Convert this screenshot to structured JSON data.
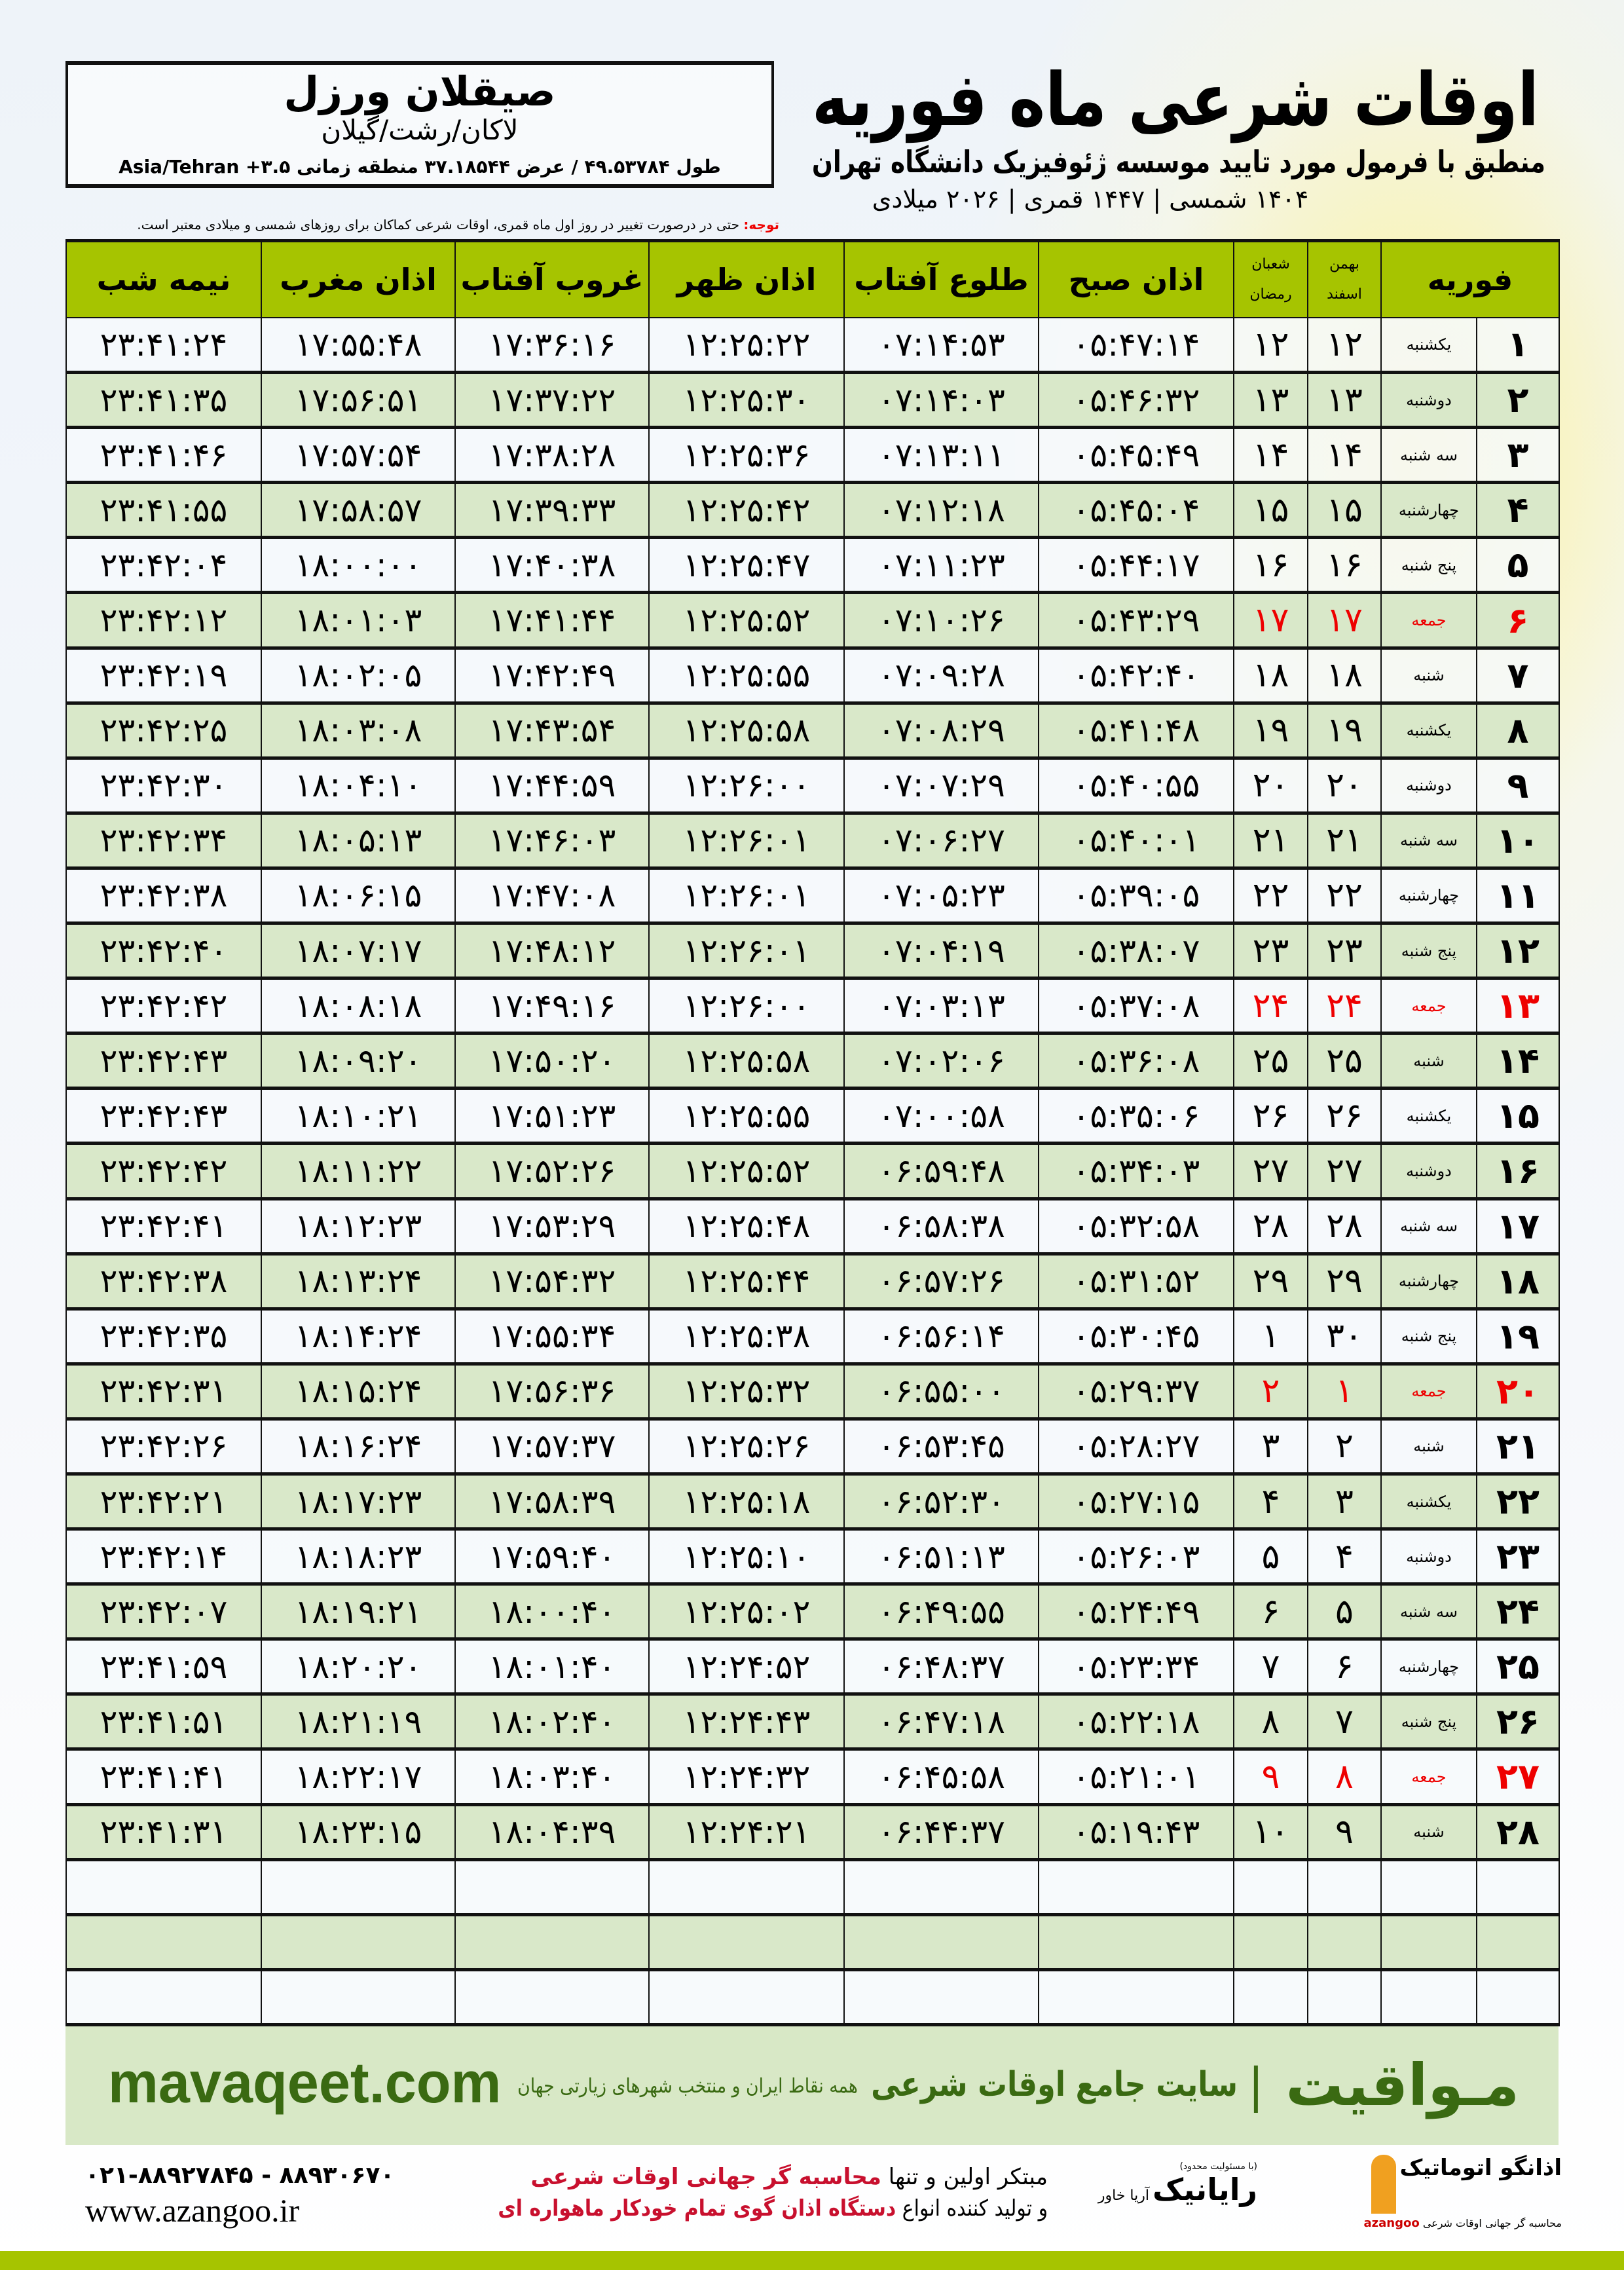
{
  "location": {
    "name": "صیقلان ورزل",
    "path": "لاکان/رشت/گیلان",
    "coords": "طول ۴۹.۵۳۷۸۴ / عرض ۳۷.۱۸۵۴۴ منطقه زمانی ۳.۵+ Asia/Tehran"
  },
  "header": {
    "title": "اوقات شرعی ماه فوریه",
    "subtitle": "منطبق با فرمول مورد تایید موسسه ژئوفیزیک دانشگاه تهران",
    "dates": "۱۴۰۴ شمسی | ۱۴۴۷ قمری | ۲۰۲۶ میلادی"
  },
  "note": {
    "label": "توجه:",
    "text": " حتی در درصورت تغییر در روز اول ماه قمری، اوقات شرعی کماکان برای روزهای شمسی و میلادی معتبر است."
  },
  "table": {
    "headers": {
      "month": "فوریه",
      "solar_top": "بهمن",
      "solar_bottom": "اسفند",
      "lunar_top": "شعبان",
      "lunar_bottom": "رمضان",
      "fajr": "اذان صبح",
      "sunrise": "طلوع آفتاب",
      "dhuhr": "اذان ظهر",
      "sunset": "غروب آفتاب",
      "maghrib": "اذان مغرب",
      "midnight": "نیمه شب"
    },
    "friday_color": "#e00000",
    "header_color": "#a6c400",
    "rows": [
      [
        "۱",
        "یکشنبه",
        "۱۲",
        "۱۲",
        "۰۵:۴۷:۱۴",
        "۰۷:۱۴:۵۳",
        "۱۲:۲۵:۲۲",
        "۱۷:۳۶:۱۶",
        "۱۷:۵۵:۴۸",
        "۲۳:۴۱:۲۴"
      ],
      [
        "۲",
        "دوشنبه",
        "۱۳",
        "۱۳",
        "۰۵:۴۶:۳۲",
        "۰۷:۱۴:۰۳",
        "۱۲:۲۵:۳۰",
        "۱۷:۳۷:۲۲",
        "۱۷:۵۶:۵۱",
        "۲۳:۴۱:۳۵"
      ],
      [
        "۳",
        "سه شنبه",
        "۱۴",
        "۱۴",
        "۰۵:۴۵:۴۹",
        "۰۷:۱۳:۱۱",
        "۱۲:۲۵:۳۶",
        "۱۷:۳۸:۲۸",
        "۱۷:۵۷:۵۴",
        "۲۳:۴۱:۴۶"
      ],
      [
        "۴",
        "چهارشنبه",
        "۱۵",
        "۱۵",
        "۰۵:۴۵:۰۴",
        "۰۷:۱۲:۱۸",
        "۱۲:۲۵:۴۲",
        "۱۷:۳۹:۳۳",
        "۱۷:۵۸:۵۷",
        "۲۳:۴۱:۵۵"
      ],
      [
        "۵",
        "پنج شنبه",
        "۱۶",
        "۱۶",
        "۰۵:۴۴:۱۷",
        "۰۷:۱۱:۲۳",
        "۱۲:۲۵:۴۷",
        "۱۷:۴۰:۳۸",
        "۱۸:۰۰:۰۰",
        "۲۳:۴۲:۰۴"
      ],
      [
        "۶",
        "جمعه",
        "۱۷",
        "۱۷",
        "۰۵:۴۳:۲۹",
        "۰۷:۱۰:۲۶",
        "۱۲:۲۵:۵۲",
        "۱۷:۴۱:۴۴",
        "۱۸:۰۱:۰۳",
        "۲۳:۴۲:۱۲"
      ],
      [
        "۷",
        "شنبه",
        "۱۸",
        "۱۸",
        "۰۵:۴۲:۴۰",
        "۰۷:۰۹:۲۸",
        "۱۲:۲۵:۵۵",
        "۱۷:۴۲:۴۹",
        "۱۸:۰۲:۰۵",
        "۲۳:۴۲:۱۹"
      ],
      [
        "۸",
        "یکشنبه",
        "۱۹",
        "۱۹",
        "۰۵:۴۱:۴۸",
        "۰۷:۰۸:۲۹",
        "۱۲:۲۵:۵۸",
        "۱۷:۴۳:۵۴",
        "۱۸:۰۳:۰۸",
        "۲۳:۴۲:۲۵"
      ],
      [
        "۹",
        "دوشنبه",
        "۲۰",
        "۲۰",
        "۰۵:۴۰:۵۵",
        "۰۷:۰۷:۲۹",
        "۱۲:۲۶:۰۰",
        "۱۷:۴۴:۵۹",
        "۱۸:۰۴:۱۰",
        "۲۳:۴۲:۳۰"
      ],
      [
        "۱۰",
        "سه شنبه",
        "۲۱",
        "۲۱",
        "۰۵:۴۰:۰۱",
        "۰۷:۰۶:۲۷",
        "۱۲:۲۶:۰۱",
        "۱۷:۴۶:۰۳",
        "۱۸:۰۵:۱۳",
        "۲۳:۴۲:۳۴"
      ],
      [
        "۱۱",
        "چهارشنبه",
        "۲۲",
        "۲۲",
        "۰۵:۳۹:۰۵",
        "۰۷:۰۵:۲۳",
        "۱۲:۲۶:۰۱",
        "۱۷:۴۷:۰۸",
        "۱۸:۰۶:۱۵",
        "۲۳:۴۲:۳۸"
      ],
      [
        "۱۲",
        "پنج شنبه",
        "۲۳",
        "۲۳",
        "۰۵:۳۸:۰۷",
        "۰۷:۰۴:۱۹",
        "۱۲:۲۶:۰۱",
        "۱۷:۴۸:۱۲",
        "۱۸:۰۷:۱۷",
        "۲۳:۴۲:۴۰"
      ],
      [
        "۱۳",
        "جمعه",
        "۲۴",
        "۲۴",
        "۰۵:۳۷:۰۸",
        "۰۷:۰۳:۱۳",
        "۱۲:۲۶:۰۰",
        "۱۷:۴۹:۱۶",
        "۱۸:۰۸:۱۸",
        "۲۳:۴۲:۴۲"
      ],
      [
        "۱۴",
        "شنبه",
        "۲۵",
        "۲۵",
        "۰۵:۳۶:۰۸",
        "۰۷:۰۲:۰۶",
        "۱۲:۲۵:۵۸",
        "۱۷:۵۰:۲۰",
        "۱۸:۰۹:۲۰",
        "۲۳:۴۲:۴۳"
      ],
      [
        "۱۵",
        "یکشنبه",
        "۲۶",
        "۲۶",
        "۰۵:۳۵:۰۶",
        "۰۷:۰۰:۵۸",
        "۱۲:۲۵:۵۵",
        "۱۷:۵۱:۲۳",
        "۱۸:۱۰:۲۱",
        "۲۳:۴۲:۴۳"
      ],
      [
        "۱۶",
        "دوشنبه",
        "۲۷",
        "۲۷",
        "۰۵:۳۴:۰۳",
        "۰۶:۵۹:۴۸",
        "۱۲:۲۵:۵۲",
        "۱۷:۵۲:۲۶",
        "۱۸:۱۱:۲۲",
        "۲۳:۴۲:۴۲"
      ],
      [
        "۱۷",
        "سه شنبه",
        "۲۸",
        "۲۸",
        "۰۵:۳۲:۵۸",
        "۰۶:۵۸:۳۸",
        "۱۲:۲۵:۴۸",
        "۱۷:۵۳:۲۹",
        "۱۸:۱۲:۲۳",
        "۲۳:۴۲:۴۱"
      ],
      [
        "۱۸",
        "چهارشنبه",
        "۲۹",
        "۲۹",
        "۰۵:۳۱:۵۲",
        "۰۶:۵۷:۲۶",
        "۱۲:۲۵:۴۴",
        "۱۷:۵۴:۳۲",
        "۱۸:۱۳:۲۴",
        "۲۳:۴۲:۳۸"
      ],
      [
        "۱۹",
        "پنج شنبه",
        "۳۰",
        "۱",
        "۰۵:۳۰:۴۵",
        "۰۶:۵۶:۱۴",
        "۱۲:۲۵:۳۸",
        "۱۷:۵۵:۳۴",
        "۱۸:۱۴:۲۴",
        "۲۳:۴۲:۳۵"
      ],
      [
        "۲۰",
        "جمعه",
        "۱",
        "۲",
        "۰۵:۲۹:۳۷",
        "۰۶:۵۵:۰۰",
        "۱۲:۲۵:۳۲",
        "۱۷:۵۶:۳۶",
        "۱۸:۱۵:۲۴",
        "۲۳:۴۲:۳۱"
      ],
      [
        "۲۱",
        "شنبه",
        "۲",
        "۳",
        "۰۵:۲۸:۲۷",
        "۰۶:۵۳:۴۵",
        "۱۲:۲۵:۲۶",
        "۱۷:۵۷:۳۷",
        "۱۸:۱۶:۲۴",
        "۲۳:۴۲:۲۶"
      ],
      [
        "۲۲",
        "یکشنبه",
        "۳",
        "۴",
        "۰۵:۲۷:۱۵",
        "۰۶:۵۲:۳۰",
        "۱۲:۲۵:۱۸",
        "۱۷:۵۸:۳۹",
        "۱۸:۱۷:۲۳",
        "۲۳:۴۲:۲۱"
      ],
      [
        "۲۳",
        "دوشنبه",
        "۴",
        "۵",
        "۰۵:۲۶:۰۳",
        "۰۶:۵۱:۱۳",
        "۱۲:۲۵:۱۰",
        "۱۷:۵۹:۴۰",
        "۱۸:۱۸:۲۳",
        "۲۳:۴۲:۱۴"
      ],
      [
        "۲۴",
        "سه شنبه",
        "۵",
        "۶",
        "۰۵:۲۴:۴۹",
        "۰۶:۴۹:۵۵",
        "۱۲:۲۵:۰۲",
        "۱۸:۰۰:۴۰",
        "۱۸:۱۹:۲۱",
        "۲۳:۴۲:۰۷"
      ],
      [
        "۲۵",
        "چهارشنبه",
        "۶",
        "۷",
        "۰۵:۲۳:۳۴",
        "۰۶:۴۸:۳۷",
        "۱۲:۲۴:۵۲",
        "۱۸:۰۱:۴۰",
        "۱۸:۲۰:۲۰",
        "۲۳:۴۱:۵۹"
      ],
      [
        "۲۶",
        "پنج شنبه",
        "۷",
        "۸",
        "۰۵:۲۲:۱۸",
        "۰۶:۴۷:۱۸",
        "۱۲:۲۴:۴۳",
        "۱۸:۰۲:۴۰",
        "۱۸:۲۱:۱۹",
        "۲۳:۴۱:۵۱"
      ],
      [
        "۲۷",
        "جمعه",
        "۸",
        "۹",
        "۰۵:۲۱:۰۱",
        "۰۶:۴۵:۵۸",
        "۱۲:۲۴:۳۲",
        "۱۸:۰۳:۴۰",
        "۱۸:۲۲:۱۷",
        "۲۳:۴۱:۴۱"
      ],
      [
        "۲۸",
        "شنبه",
        "۹",
        "۱۰",
        "۰۵:۱۹:۴۳",
        "۰۶:۴۴:۳۷",
        "۱۲:۲۴:۲۱",
        "۱۸:۰۴:۳۹",
        "۱۸:۲۳:۱۵",
        "۲۳:۴۱:۳۱"
      ]
    ]
  },
  "footer": {
    "brand_fa": "مـواقیت",
    "brand_tagline": "سایت جامع اوقات شرعی",
    "brand_sub": "همه نقاط ایران و منتخب شهرهای زیارتی جهان",
    "brand_en": "mavaqeet.com",
    "azangoo_name": "اذانگو اتوماتیک",
    "azangoo_sub": "محاسبه گر جهانی اوقات شرعی",
    "azangoo_en": "azangoo",
    "rayanik_top": "(با مسئولیت محدود)",
    "rayanik_name": "رایانیک",
    "rayanik_small": "آریا خاور",
    "promo_line1_a": "مبتکر اولین و تنها ",
    "promo_line1_b": "محاسبه گر جهانی اوقات شرعی",
    "promo_line2_a": "و تولید کننده انواع ",
    "promo_line2_b": "دستگاه اذان گوی تمام خودکار ماهواره ای",
    "phones": "۰۲۱-۸۸۹۲۷۸۴۵ - ۸۸۹۳۰۶۷۰",
    "website": "www.azangoo.ir"
  }
}
